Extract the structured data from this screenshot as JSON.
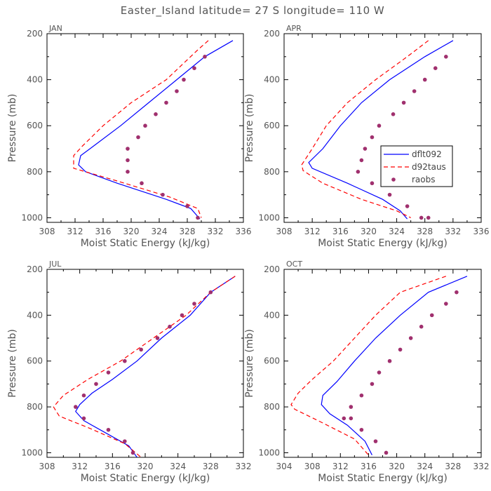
{
  "figure": {
    "title": "Easter_Island  latitude= 27 S longitude= 110 W"
  },
  "colors": {
    "dflt092": "#0000ff",
    "d92taus": "#ff0000",
    "raobs": "#a0306e",
    "axis": "#000000",
    "text": "#555555"
  },
  "legend": {
    "entries": [
      "dflt092",
      "d92taus",
      "raobs"
    ]
  },
  "chart_data": [
    {
      "type": "line",
      "title": "JAN",
      "xlabel": "Moist Static Energy (kJ/kg)",
      "ylabel": "Pressure (mb)",
      "xlim": [
        308,
        336
      ],
      "ylim": [
        1020,
        200
      ],
      "xticks": [
        308,
        312,
        316,
        320,
        324,
        328,
        332,
        336
      ],
      "yticks": [
        200,
        400,
        600,
        800,
        1000
      ],
      "series": [
        {
          "name": "dflt092",
          "style": "solid",
          "x": [
            334.5,
            330.5,
            326.5,
            322.5,
            318.5,
            315,
            312.8,
            312.5,
            313.5,
            318,
            325,
            328.5,
            329.8
          ],
          "y": [
            230,
            300,
            400,
            500,
            600,
            680,
            730,
            770,
            800,
            850,
            920,
            960,
            1005
          ]
        },
        {
          "name": "d92taus",
          "style": "dashed",
          "x": [
            331,
            329.5,
            325,
            320,
            316,
            313,
            311.8,
            311.8,
            318,
            325.5,
            329.5,
            330
          ],
          "y": [
            230,
            270,
            400,
            500,
            600,
            690,
            730,
            785,
            840,
            910,
            960,
            1000
          ]
        },
        {
          "name": "raobs",
          "style": "dots",
          "x": [
            330.5,
            329,
            327.5,
            326.5,
            325,
            323.5,
            322,
            321,
            319.5,
            319.5,
            319.5,
            321.5,
            324.5,
            328,
            329.5
          ],
          "y": [
            300,
            350,
            400,
            450,
            500,
            550,
            600,
            650,
            700,
            750,
            800,
            850,
            900,
            950,
            1000
          ]
        }
      ]
    },
    {
      "type": "line",
      "title": "APR",
      "xlabel": "Moist Static Energy (kJ/kg)",
      "ylabel": "Pressure (mb)",
      "xlim": [
        308,
        336
      ],
      "ylim": [
        1020,
        200
      ],
      "xticks": [
        308,
        312,
        316,
        320,
        324,
        328,
        332,
        336
      ],
      "yticks": [
        200,
        400,
        600,
        800,
        1000
      ],
      "series": [
        {
          "name": "dflt092",
          "style": "solid",
          "x": [
            332,
            328,
            323,
            319,
            316,
            313.5,
            311.5,
            312,
            317,
            322,
            324.5,
            325.5
          ],
          "y": [
            230,
            300,
            400,
            500,
            600,
            700,
            760,
            785,
            850,
            920,
            970,
            1005
          ]
        },
        {
          "name": "d92taus",
          "style": "dashed",
          "x": [
            328.5,
            325.5,
            321,
            317,
            314,
            312,
            310.5,
            310.7,
            313.5,
            319,
            324,
            326
          ],
          "y": [
            230,
            300,
            400,
            500,
            600,
            700,
            770,
            795,
            850,
            920,
            970,
            1000
          ]
        },
        {
          "name": "raobs",
          "style": "dots",
          "x": [
            331,
            329.5,
            328,
            326.5,
            325,
            323.5,
            321.5,
            320.5,
            319.5,
            319,
            318.5,
            320.5,
            323,
            325.5,
            327.5,
            328.5
          ],
          "y": [
            300,
            350,
            400,
            450,
            500,
            550,
            600,
            650,
            700,
            750,
            800,
            850,
            900,
            950,
            1000,
            1000
          ]
        }
      ]
    },
    {
      "type": "line",
      "title": "JUL",
      "xlabel": "Moist Static Energy (kJ/kg)",
      "ylabel": "Pressure (mb)",
      "xlim": [
        308,
        332
      ],
      "ylim": [
        1020,
        200
      ],
      "xticks": [
        308,
        312,
        316,
        320,
        324,
        328,
        332
      ],
      "yticks": [
        200,
        400,
        600,
        800,
        1000
      ],
      "series": [
        {
          "name": "dflt092",
          "style": "solid",
          "x": [
            331,
            328,
            325.5,
            322,
            319,
            316,
            313.5,
            312,
            311.5,
            312.5,
            315.5,
            318,
            319
          ],
          "y": [
            230,
            300,
            400,
            500,
            600,
            680,
            740,
            790,
            820,
            860,
            920,
            970,
            1020
          ]
        },
        {
          "name": "d92taus",
          "style": "dashed",
          "x": [
            331,
            328,
            325,
            321,
            317,
            313,
            310,
            308.8,
            309.5,
            313,
            317.5,
            319.5
          ],
          "y": [
            230,
            300,
            400,
            500,
            600,
            680,
            750,
            800,
            840,
            890,
            960,
            1020
          ]
        },
        {
          "name": "raobs",
          "style": "dots",
          "x": [
            328,
            326,
            324.5,
            323,
            321.5,
            319.5,
            317.5,
            315.5,
            314,
            312.5,
            311.5,
            312.5,
            315.5,
            317.5,
            318.5
          ],
          "y": [
            300,
            350,
            400,
            450,
            500,
            550,
            600,
            650,
            700,
            750,
            800,
            850,
            900,
            950,
            1000
          ]
        }
      ]
    },
    {
      "type": "line",
      "title": "OCT",
      "xlabel": "Moist Static Energy (kJ/kg)",
      "ylabel": "Pressure (mb)",
      "xlim": [
        304,
        332
      ],
      "ylim": [
        1020,
        200
      ],
      "xticks": [
        304,
        308,
        312,
        316,
        320,
        324,
        328,
        332
      ],
      "yticks": [
        200,
        400,
        600,
        800,
        1000
      ],
      "series": [
        {
          "name": "dflt092",
          "style": "solid",
          "x": [
            330,
            324.5,
            320.5,
            317,
            314,
            311.5,
            309.5,
            309.3,
            310.5,
            313,
            315.5,
            316.5
          ],
          "y": [
            230,
            300,
            400,
            500,
            600,
            690,
            750,
            790,
            830,
            880,
            950,
            1010
          ]
        },
        {
          "name": "d92taus",
          "style": "dashed",
          "x": [
            327,
            320.5,
            317,
            314,
            311,
            308,
            306,
            305,
            305.5,
            309.5,
            314,
            316
          ],
          "y": [
            230,
            300,
            400,
            500,
            600,
            680,
            740,
            790,
            810,
            870,
            940,
            1010
          ]
        },
        {
          "name": "raobs",
          "style": "dots",
          "x": [
            328.5,
            327,
            325,
            323.5,
            322,
            320.5,
            319,
            317.5,
            316.5,
            315,
            313.5,
            312.5,
            313.5,
            315,
            317,
            318.5
          ],
          "y": [
            300,
            350,
            400,
            450,
            500,
            550,
            600,
            650,
            700,
            750,
            800,
            850,
            850,
            900,
            950,
            1000
          ]
        }
      ]
    }
  ]
}
